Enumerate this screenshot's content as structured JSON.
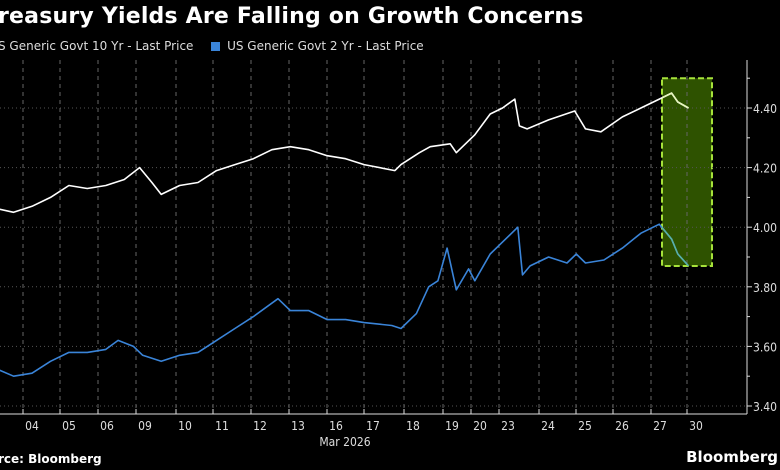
{
  "chart_data": {
    "type": "line",
    "title": "reasury Yields Are Falling on Growth Concerns",
    "xlabel": "Mar 2026",
    "ylabel": "",
    "ylim": [
      3.4,
      4.5
    ],
    "yticks": [
      "4.40",
      "4.20",
      "4.00",
      "3.80",
      "3.60",
      "3.40"
    ],
    "categories": [
      "04",
      "05",
      "06",
      "09",
      "10",
      "11",
      "12",
      "13",
      "16",
      "17",
      "18",
      "19",
      "20",
      "23",
      "24",
      "25",
      "26",
      "27",
      "30"
    ],
    "grid": true,
    "legend": "top-left",
    "highlight": {
      "x_range": [
        "03-27 12:00",
        "03-30 20:00"
      ],
      "y_range": [
        3.87,
        4.5
      ],
      "fill": "#2e5200",
      "border": "#a6e23a"
    },
    "series": [
      {
        "name": "S Generic Govt 10 Yr - Last Price",
        "color": "#ffffff",
        "points": [
          [
            "03-03 15:00",
            4.06
          ],
          [
            "03-04 00:00",
            4.05
          ],
          [
            "03-04 12:00",
            4.07
          ],
          [
            "03-05 00:00",
            4.1
          ],
          [
            "03-05 12:00",
            4.14
          ],
          [
            "03-06 00:00",
            4.13
          ],
          [
            "03-06 12:00",
            4.14
          ],
          [
            "03-09 00:00",
            4.16
          ],
          [
            "03-09 10:00",
            4.2
          ],
          [
            "03-09 18:00",
            4.15
          ],
          [
            "03-10 00:00",
            4.11
          ],
          [
            "03-10 12:00",
            4.14
          ],
          [
            "03-11 00:00",
            4.15
          ],
          [
            "03-11 12:00",
            4.19
          ],
          [
            "03-12 00:00",
            4.21
          ],
          [
            "03-12 12:00",
            4.23
          ],
          [
            "03-13 00:00",
            4.26
          ],
          [
            "03-13 12:00",
            4.27
          ],
          [
            "03-16 00:00",
            4.26
          ],
          [
            "03-16 12:00",
            4.24
          ],
          [
            "03-17 00:00",
            4.23
          ],
          [
            "03-17 12:00",
            4.21
          ],
          [
            "03-18 08:00",
            4.19
          ],
          [
            "03-18 12:00",
            4.21
          ],
          [
            "03-19 00:00",
            4.25
          ],
          [
            "03-19 07:00",
            4.27
          ],
          [
            "03-19 20:00",
            4.28
          ],
          [
            "03-20 00:00",
            4.25
          ],
          [
            "03-20 12:00",
            4.31
          ],
          [
            "03-20 22:00",
            4.38
          ],
          [
            "03-23 06:00",
            4.4
          ],
          [
            "03-23 14:00",
            4.43
          ],
          [
            "03-23 17:00",
            4.34
          ],
          [
            "03-23 22:00",
            4.33
          ],
          [
            "03-24 12:00",
            4.36
          ],
          [
            "03-25 05:00",
            4.39
          ],
          [
            "03-25 12:00",
            4.33
          ],
          [
            "03-25 22:00",
            4.32
          ],
          [
            "03-26 12:00",
            4.37
          ],
          [
            "03-27 00:00",
            4.4
          ],
          [
            "03-27 12:00",
            4.43
          ],
          [
            "03-27 20:00",
            4.45
          ],
          [
            "03-30 00:00",
            4.42
          ],
          [
            "03-30 07:00",
            4.4
          ]
        ]
      },
      {
        "name": "US Generic Govt 2 Yr - Last Price",
        "color": "#3a84d8",
        "points": [
          [
            "03-03 15:00",
            3.52
          ],
          [
            "03-04 00:00",
            3.5
          ],
          [
            "03-04 12:00",
            3.51
          ],
          [
            "03-05 00:00",
            3.55
          ],
          [
            "03-05 12:00",
            3.58
          ],
          [
            "03-06 00:00",
            3.58
          ],
          [
            "03-06 12:00",
            3.59
          ],
          [
            "03-06 20:00",
            3.62
          ],
          [
            "03-09 06:00",
            3.6
          ],
          [
            "03-09 12:00",
            3.57
          ],
          [
            "03-10 00:00",
            3.55
          ],
          [
            "03-10 12:00",
            3.57
          ],
          [
            "03-11 00:00",
            3.58
          ],
          [
            "03-11 12:00",
            3.62
          ],
          [
            "03-12 00:00",
            3.66
          ],
          [
            "03-12 12:00",
            3.7
          ],
          [
            "03-13 04:00",
            3.76
          ],
          [
            "03-13 12:00",
            3.72
          ],
          [
            "03-16 00:00",
            3.72
          ],
          [
            "03-16 12:00",
            3.69
          ],
          [
            "03-17 00:00",
            3.69
          ],
          [
            "03-17 12:00",
            3.68
          ],
          [
            "03-18 06:00",
            3.67
          ],
          [
            "03-18 12:00",
            3.66
          ],
          [
            "03-18 22:00",
            3.71
          ],
          [
            "03-19 06:00",
            3.8
          ],
          [
            "03-19 12:00",
            3.82
          ],
          [
            "03-19 18:00",
            3.93
          ],
          [
            "03-20 00:00",
            3.79
          ],
          [
            "03-20 08:00",
            3.86
          ],
          [
            "03-20 12:00",
            3.82
          ],
          [
            "03-20 22:00",
            3.91
          ],
          [
            "03-23 04:00",
            3.94
          ],
          [
            "03-23 16:00",
            4.0
          ],
          [
            "03-23 19:00",
            3.84
          ],
          [
            "03-24 00:00",
            3.87
          ],
          [
            "03-24 12:00",
            3.9
          ],
          [
            "03-25 00:00",
            3.88
          ],
          [
            "03-25 06:00",
            3.91
          ],
          [
            "03-25 12:00",
            3.88
          ],
          [
            "03-26 00:00",
            3.89
          ],
          [
            "03-26 12:00",
            3.93
          ],
          [
            "03-27 00:00",
            3.98
          ],
          [
            "03-27 12:00",
            4.01
          ],
          [
            "03-27 20:00",
            3.96
          ],
          [
            "03-30 00:00",
            3.91
          ],
          [
            "03-30 07:00",
            3.87
          ]
        ]
      }
    ]
  },
  "footer": {
    "source": "rce: Bloomberg",
    "brand": "Bloomberg"
  }
}
